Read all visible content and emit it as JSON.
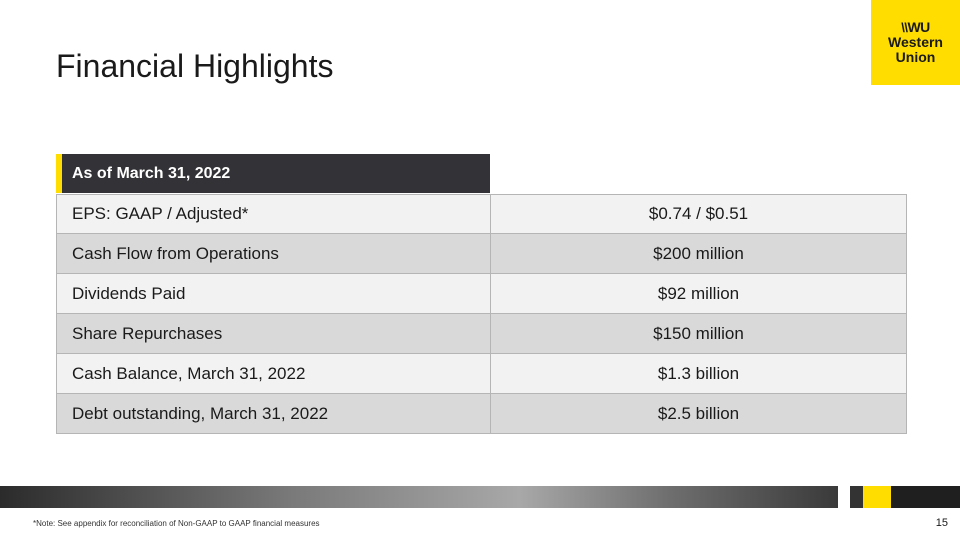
{
  "slide": {
    "title": "Financial Highlights",
    "page_number": "15",
    "note": "*Note: See appendix for reconciliation of Non-GAAP to GAAP financial measures"
  },
  "logo": {
    "mark": "WU",
    "line1": "Western",
    "line2": "Union"
  },
  "table": {
    "header": "As of March 31, 2022",
    "rows": [
      {
        "label": "EPS: GAAP / Adjusted*",
        "value": "$0.74 / $0.51"
      },
      {
        "label": "Cash Flow from Operations",
        "value": "$200 million"
      },
      {
        "label": "Dividends Paid",
        "value": "$92 million"
      },
      {
        "label": "Share Repurchases",
        "value": "$150 million"
      },
      {
        "label": "Cash Balance, March 31, 2022",
        "value": "$1.3 billion"
      },
      {
        "label": "Debt outstanding, March 31, 2022",
        "value": "$2.5 billion"
      }
    ]
  },
  "colors": {
    "brand_yellow": "#ffdd00",
    "header_dark": "#333337",
    "row_light": "#f2f2f2",
    "row_dark": "#d9d9d9"
  }
}
